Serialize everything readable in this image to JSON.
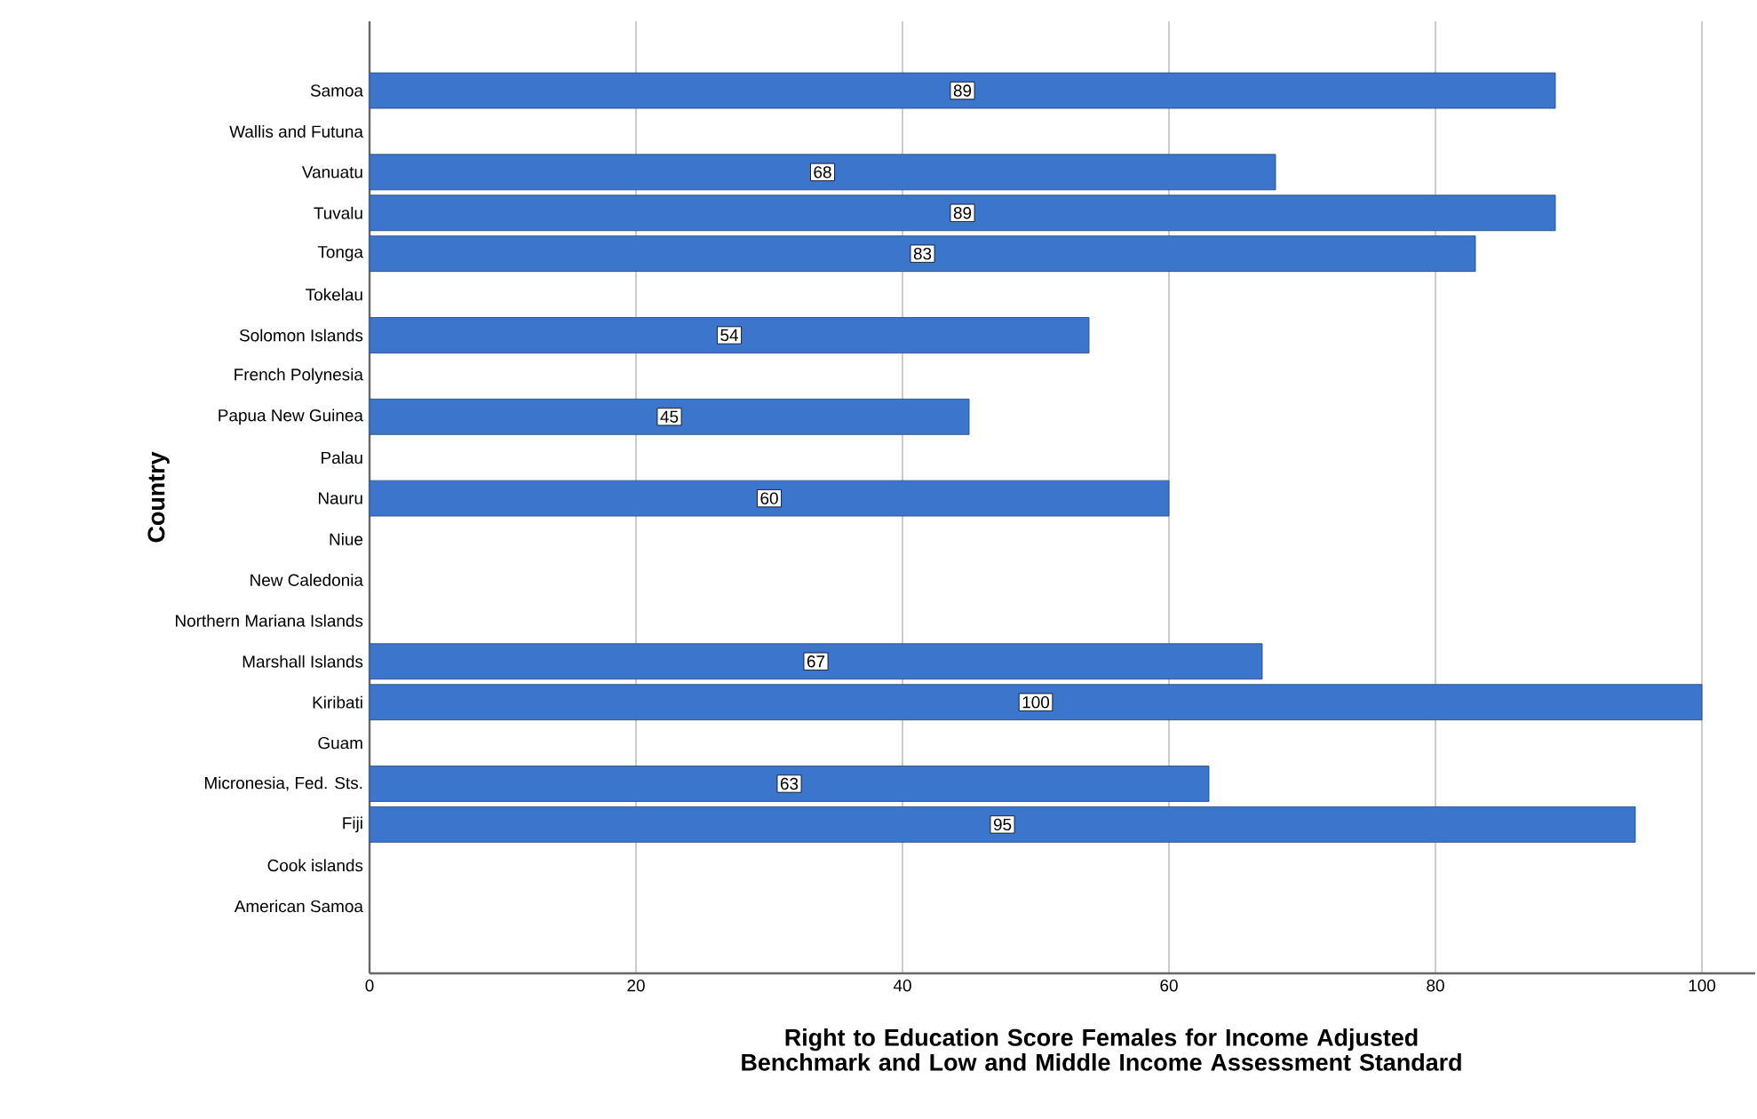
{
  "chart_data": {
    "type": "bar",
    "orientation": "horizontal",
    "xlabel": "Right to Education Score Females for Income Adjusted Benchmark and Low and Middle Income Assessment Standard",
    "ylabel": "Country",
    "categories": [
      "Samoa",
      "Wallis and Futuna",
      "Vanuatu",
      "Tuvalu",
      "Tonga",
      "Tokelau",
      "Solomon Islands",
      "French Polynesia",
      "Papua New Guinea",
      "Palau",
      "Nauru",
      "Niue",
      "New Caledonia",
      "Northern Mariana Islands",
      "Marshall Islands",
      "Kiribati",
      "Guam",
      "Micronesia, Fed. Sts.",
      "Fiji",
      "Cook islands",
      "American Samoa"
    ],
    "values": [
      89,
      null,
      68,
      89,
      83,
      null,
      54,
      null,
      45,
      null,
      60,
      null,
      null,
      null,
      67,
      100,
      null,
      63,
      95,
      null,
      null
    ],
    "color": "#3b75cc",
    "xlim": [
      0,
      104
    ],
    "xticks": [
      0,
      20,
      40,
      60,
      80,
      100
    ],
    "grid": "x",
    "data_labels": true
  }
}
